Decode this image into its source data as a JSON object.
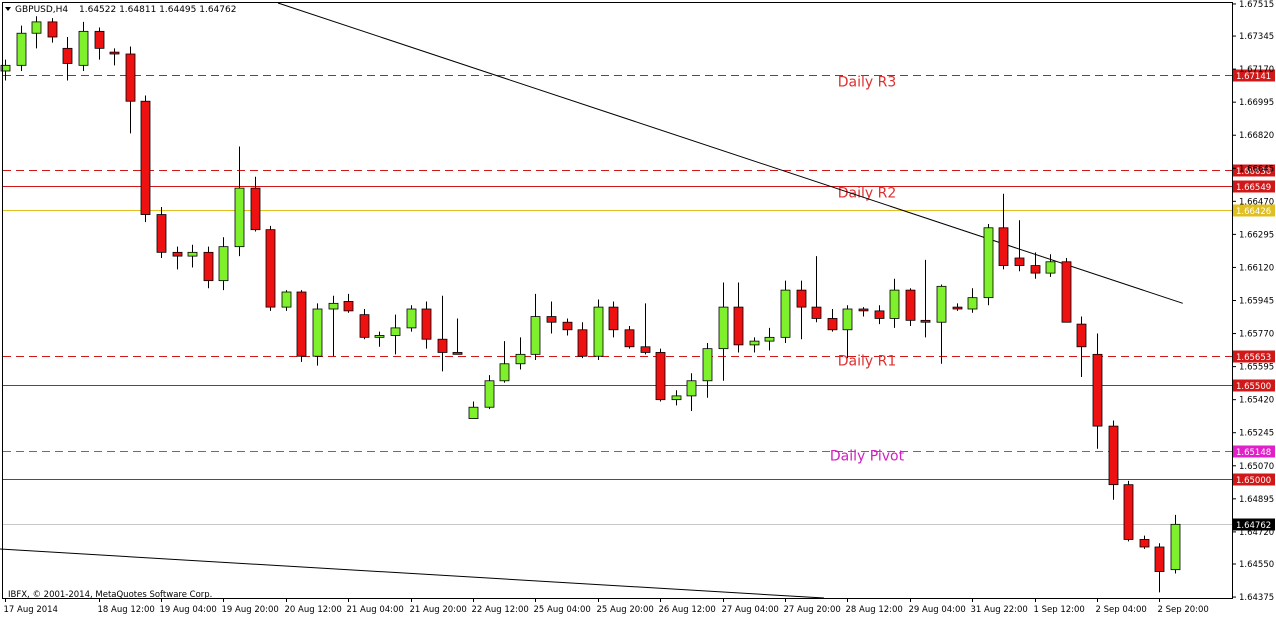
{
  "header": {
    "symbol": "GBPUSD,H4",
    "ohlc": "1.64522 1.64811 1.64495 1.64762"
  },
  "copyright": "IBFX, © 2001-2014, MetaQuotes Software Corp.",
  "chart_data": {
    "type": "candlestick",
    "ylim": [
      1.6437,
      1.6752
    ],
    "y_ticks": [
      1.67515,
      1.67345,
      1.6717,
      1.66995,
      1.6682,
      1.66645,
      1.6647,
      1.66295,
      1.6612,
      1.65945,
      1.6577,
      1.65595,
      1.6542,
      1.65245,
      1.6507,
      1.64895,
      1.6472,
      1.6455,
      1.64375
    ],
    "x_ticks": [
      {
        "label": "17 Aug 2014",
        "index": 0
      },
      {
        "label": "18 Aug 12:00",
        "index": 6
      },
      {
        "label": "19 Aug 04:00",
        "index": 10
      },
      {
        "label": "19 Aug 20:00",
        "index": 14
      },
      {
        "label": "20 Aug 12:00",
        "index": 18
      },
      {
        "label": "21 Aug 04:00",
        "index": 22
      },
      {
        "label": "21 Aug 20:00",
        "index": 26
      },
      {
        "label": "22 Aug 12:00",
        "index": 30
      },
      {
        "label": "25 Aug 04:00",
        "index": 34
      },
      {
        "label": "25 Aug 20:00",
        "index": 38
      },
      {
        "label": "26 Aug 12:00",
        "index": 42
      },
      {
        "label": "27 Aug 04:00",
        "index": 46
      },
      {
        "label": "27 Aug 20:00",
        "index": 50
      },
      {
        "label": "28 Aug 12:00",
        "index": 54
      },
      {
        "label": "29 Aug 04:00",
        "index": 58
      },
      {
        "label": "31 Aug 22:00",
        "index": 62
      },
      {
        "label": "1 Sep 12:00",
        "index": 66
      },
      {
        "label": "2 Sep 04:00",
        "index": 70
      },
      {
        "label": "2 Sep 20:00",
        "index": 74
      }
    ],
    "candles": [
      [
        1.6716,
        1.6722,
        1.6711,
        1.6719
      ],
      [
        1.6719,
        1.674,
        1.6716,
        1.6736
      ],
      [
        1.6736,
        1.6745,
        1.6728,
        1.6742
      ],
      [
        1.6742,
        1.6744,
        1.6731,
        1.6734
      ],
      [
        1.6728,
        1.6734,
        1.6711,
        1.672
      ],
      [
        1.6719,
        1.6742,
        1.6716,
        1.6737
      ],
      [
        1.6737,
        1.6739,
        1.6722,
        1.6728
      ],
      [
        1.6726,
        1.6728,
        1.6719,
        1.6725
      ],
      [
        1.6725,
        1.6729,
        1.6683,
        1.67
      ],
      [
        1.67,
        1.6703,
        1.6636,
        1.664
      ],
      [
        1.664,
        1.6644,
        1.6617,
        1.662
      ],
      [
        1.662,
        1.6623,
        1.6611,
        1.6618
      ],
      [
        1.6618,
        1.6624,
        1.6612,
        1.662
      ],
      [
        1.662,
        1.6623,
        1.6601,
        1.6605
      ],
      [
        1.6605,
        1.6628,
        1.66,
        1.6623
      ],
      [
        1.6623,
        1.6676,
        1.6618,
        1.6654
      ],
      [
        1.6654,
        1.666,
        1.6631,
        1.6632
      ],
      [
        1.6632,
        1.6634,
        1.6589,
        1.6591
      ],
      [
        1.6591,
        1.66,
        1.6589,
        1.6599
      ],
      [
        1.6599,
        1.66,
        1.6562,
        1.6565
      ],
      [
        1.6565,
        1.6593,
        1.656,
        1.659
      ],
      [
        1.659,
        1.6597,
        1.6565,
        1.6593
      ],
      [
        1.6594,
        1.6598,
        1.6588,
        1.6589
      ],
      [
        1.6587,
        1.659,
        1.6574,
        1.6575
      ],
      [
        1.6575,
        1.6578,
        1.657,
        1.6576
      ],
      [
        1.6576,
        1.6587,
        1.6566,
        1.658
      ],
      [
        1.658,
        1.6592,
        1.6578,
        1.659
      ],
      [
        1.659,
        1.6594,
        1.6569,
        1.6574
      ],
      [
        1.6574,
        1.6597,
        1.6557,
        1.6567
      ],
      [
        1.6567,
        1.6585,
        1.6566,
        1.6566
      ],
      [
        1.6532,
        1.6541,
        1.6532,
        1.6538
      ],
      [
        1.6538,
        1.6555,
        1.6537,
        1.6552
      ],
      [
        1.6552,
        1.6573,
        1.6551,
        1.6561
      ],
      [
        1.6561,
        1.6575,
        1.6558,
        1.6566
      ],
      [
        1.6566,
        1.6598,
        1.6563,
        1.6586
      ],
      [
        1.6586,
        1.6594,
        1.6577,
        1.6583
      ],
      [
        1.6583,
        1.6585,
        1.6576,
        1.6579
      ],
      [
        1.6579,
        1.6583,
        1.6564,
        1.6565
      ],
      [
        1.6565,
        1.6595,
        1.6563,
        1.6591
      ],
      [
        1.6591,
        1.6594,
        1.6575,
        1.6579
      ],
      [
        1.6579,
        1.6581,
        1.6569,
        1.657
      ],
      [
        1.657,
        1.6593,
        1.6566,
        1.6567
      ],
      [
        1.6567,
        1.6569,
        1.6541,
        1.6542
      ],
      [
        1.6542,
        1.6547,
        1.6539,
        1.6544
      ],
      [
        1.6544,
        1.6556,
        1.6536,
        1.6552
      ],
      [
        1.6552,
        1.6572,
        1.6543,
        1.6569
      ],
      [
        1.6569,
        1.6604,
        1.6552,
        1.6591
      ],
      [
        1.6591,
        1.6604,
        1.6567,
        1.6571
      ],
      [
        1.6571,
        1.6575,
        1.6567,
        1.6573
      ],
      [
        1.6573,
        1.658,
        1.6568,
        1.6575
      ],
      [
        1.6575,
        1.6605,
        1.6572,
        1.66
      ],
      [
        1.66,
        1.6605,
        1.6574,
        1.6591
      ],
      [
        1.6591,
        1.6618,
        1.6583,
        1.6585
      ],
      [
        1.6585,
        1.659,
        1.6578,
        1.6579
      ],
      [
        1.6579,
        1.6592,
        1.6564,
        1.659
      ],
      [
        1.659,
        1.6591,
        1.6586,
        1.6589
      ],
      [
        1.6589,
        1.6592,
        1.6582,
        1.6585
      ],
      [
        1.6585,
        1.6606,
        1.658,
        1.66
      ],
      [
        1.66,
        1.6601,
        1.6581,
        1.6584
      ],
      [
        1.6584,
        1.6616,
        1.6575,
        1.6583
      ],
      [
        1.6583,
        1.6603,
        1.6561,
        1.6602
      ],
      [
        1.6591,
        1.6593,
        1.6589,
        1.659
      ],
      [
        1.659,
        1.6601,
        1.6588,
        1.6596
      ],
      [
        1.6596,
        1.6635,
        1.6592,
        1.6633
      ],
      [
        1.6633,
        1.6651,
        1.6611,
        1.6613
      ],
      [
        1.6617,
        1.6637,
        1.661,
        1.6613
      ],
      [
        1.6613,
        1.662,
        1.6606,
        1.6609
      ],
      [
        1.6609,
        1.6619,
        1.6607,
        1.6615
      ],
      [
        1.6615,
        1.6617,
        1.6583,
        1.6583
      ],
      [
        1.6582,
        1.6586,
        1.6554,
        1.657
      ],
      [
        1.6566,
        1.6577,
        1.6516,
        1.6528
      ],
      [
        1.6528,
        1.6531,
        1.6489,
        1.6497
      ],
      [
        1.6497,
        1.6499,
        1.6467,
        1.6468
      ],
      [
        1.6468,
        1.647,
        1.6463,
        1.6464
      ],
      [
        1.6464,
        1.6466,
        1.644,
        1.6451
      ],
      [
        1.6452,
        1.6481,
        1.645,
        1.6476
      ]
    ],
    "bull_color": "#7ff02c",
    "bear_color": "#ee1111",
    "levels": [
      {
        "price": 1.67141,
        "label": "1.67141",
        "style": "dashed",
        "color": "#d01818",
        "name_text": "Daily R3",
        "name_color": "#e03030"
      },
      {
        "price": 1.66636,
        "label": "1.66636",
        "style": "dashed",
        "color": "#d01818",
        "name_text": "",
        "name_color": ""
      },
      {
        "price": 1.66549,
        "label": "1.66549",
        "style": "solid",
        "color": "#d01818",
        "name_text": "Daily R2",
        "name_color": "#e03030"
      },
      {
        "price": 1.66426,
        "label": "1.66426",
        "style": "solid",
        "color": "#e0c020",
        "name_text": "",
        "name_color": ""
      },
      {
        "price": 1.65653,
        "label": "1.65653",
        "style": "dashed",
        "color": "#d01818",
        "name_text": "Daily R1",
        "name_color": "#e03030"
      },
      {
        "price": 1.655,
        "label": "1.65500",
        "style": "solid",
        "color": "#d01818",
        "name_text": "",
        "name_color": ""
      },
      {
        "price": 1.65148,
        "label": "1.65148",
        "style": "dashed",
        "color": "#e020c8",
        "name_text": "Daily Pivot",
        "name_color": "#d020c0"
      },
      {
        "price": 1.65,
        "label": "1.65000",
        "style": "solid",
        "color": "#d01818",
        "name_text": "",
        "name_color": ""
      }
    ],
    "current_price": {
      "price": 1.64762,
      "label": "1.64762"
    },
    "trendlines": [
      {
        "from": [
          -0.5,
          1.6463
        ],
        "to": [
          52.5,
          1.6437
        ]
      },
      {
        "from": [
          17.5,
          1.6752
        ],
        "to": [
          75.5,
          1.6593
        ]
      }
    ]
  }
}
